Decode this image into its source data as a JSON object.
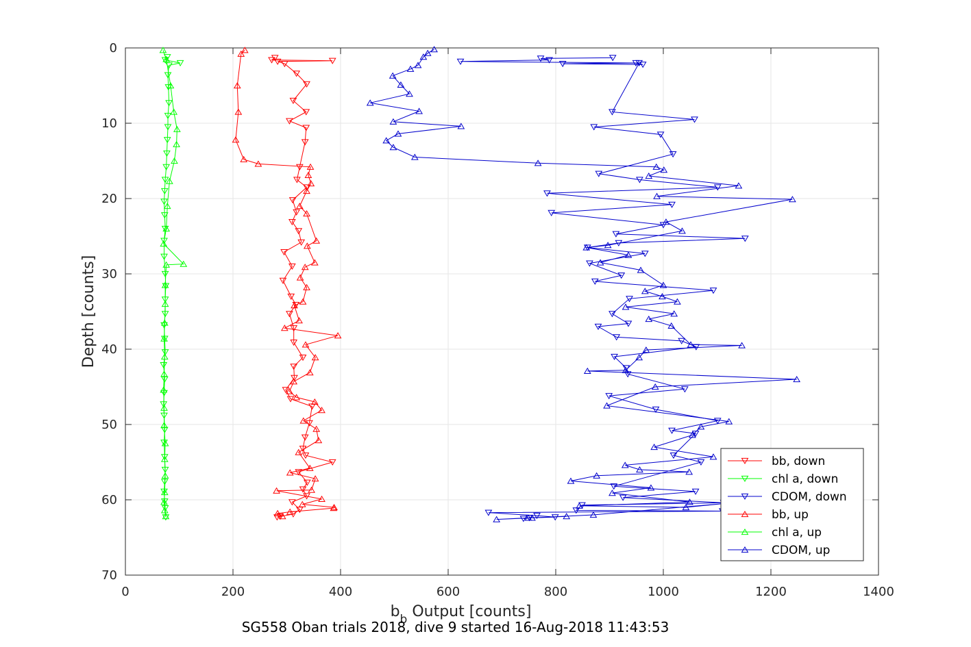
{
  "chart_data": {
    "type": "line",
    "title": "SG558 Oban trials 2018, dive 9 started 16-Aug-2018 11:43:53",
    "xlabel": {
      "main": "b",
      "sub": "b",
      "rest": " Output [counts]"
    },
    "ylabel": "Depth [counts]",
    "xlim": [
      0,
      1400
    ],
    "ylim": [
      0,
      70
    ],
    "y_reversed": true,
    "xticks": [
      0,
      200,
      400,
      600,
      800,
      1000,
      1200,
      1400
    ],
    "yticks": [
      0,
      10,
      20,
      30,
      40,
      50,
      60,
      70
    ],
    "grid": true,
    "legend_position": "bottom-right",
    "series": [
      {
        "name": "bb, down",
        "color": "#ff0000",
        "marker": "triangle-down",
        "points": [
          [
            278,
            1.3
          ],
          [
            272,
            1.6
          ],
          [
            385,
            1.7
          ],
          [
            283,
            1.8
          ],
          [
            296,
            2.1
          ],
          [
            318,
            3.4
          ],
          [
            337,
            4.8
          ],
          [
            312,
            7.0
          ],
          [
            336,
            8.5
          ],
          [
            305,
            9.7
          ],
          [
            336,
            10.6
          ],
          [
            334,
            12.5
          ],
          [
            324,
            15.8
          ],
          [
            319,
            17.5
          ],
          [
            337,
            18.5
          ],
          [
            311,
            20.2
          ],
          [
            318,
            21.8
          ],
          [
            310,
            23.1
          ],
          [
            322,
            24.3
          ],
          [
            327,
            25.8
          ],
          [
            295,
            27.1
          ],
          [
            310,
            29.0
          ],
          [
            293,
            30.9
          ],
          [
            308,
            33.0
          ],
          [
            317,
            34.1
          ],
          [
            305,
            35.3
          ],
          [
            313,
            37.2
          ],
          [
            313,
            39.1
          ],
          [
            330,
            41.1
          ],
          [
            313,
            42.3
          ],
          [
            314,
            43.8
          ],
          [
            298,
            45.4
          ],
          [
            307,
            46.6
          ],
          [
            347,
            47.6
          ],
          [
            342,
            49.8
          ],
          [
            334,
            51.7
          ],
          [
            330,
            53.2
          ],
          [
            335,
            54.1
          ],
          [
            385,
            55.0
          ],
          [
            322,
            56.3
          ],
          [
            338,
            57.7
          ],
          [
            330,
            58.6
          ],
          [
            337,
            59.5
          ],
          [
            310,
            60.3
          ],
          [
            324,
            61.3
          ],
          [
            312,
            61.9
          ],
          [
            288,
            62.2
          ],
          [
            282,
            62.3
          ]
        ]
      },
      {
        "name": "chl a, down",
        "color": "#00ff00",
        "marker": "triangle-down",
        "points": [
          [
            78,
            1.2
          ],
          [
            74,
            1.6
          ],
          [
            102,
            2.0
          ],
          [
            81,
            2.3
          ],
          [
            79,
            3.6
          ],
          [
            80,
            5.2
          ],
          [
            81,
            7.3
          ],
          [
            79,
            9.0
          ],
          [
            79,
            10.5
          ],
          [
            78,
            12.2
          ],
          [
            77,
            14.0
          ],
          [
            76,
            15.8
          ],
          [
            74,
            17.5
          ],
          [
            73,
            19.0
          ],
          [
            72,
            20.4
          ],
          [
            73,
            22.2
          ],
          [
            74,
            24.0
          ],
          [
            72,
            25.6
          ],
          [
            72,
            27.7
          ],
          [
            74,
            30.0
          ],
          [
            75,
            31.6
          ],
          [
            74,
            33.4
          ],
          [
            74,
            35.3
          ],
          [
            72,
            36.8
          ],
          [
            73,
            38.6
          ],
          [
            74,
            40.4
          ],
          [
            71,
            42.1
          ],
          [
            73,
            44.0
          ],
          [
            72,
            45.8
          ],
          [
            71,
            47.3
          ],
          [
            72,
            48.8
          ],
          [
            73,
            50.7
          ],
          [
            72,
            52.4
          ],
          [
            73,
            54.3
          ],
          [
            74,
            56.0
          ],
          [
            73,
            57.6
          ],
          [
            72,
            58.9
          ],
          [
            73,
            60.2
          ],
          [
            74,
            61.1
          ],
          [
            75,
            62.3
          ]
        ]
      },
      {
        "name": "CDOM, down",
        "color": "#0000cc",
        "marker": "triangle-down",
        "points": [
          [
            906,
            1.3
          ],
          [
            772,
            1.4
          ],
          [
            788,
            1.6
          ],
          [
            623,
            1.8
          ],
          [
            949,
            2.0
          ],
          [
            962,
            2.2
          ],
          [
            813,
            2.1
          ],
          [
            955,
            2.0
          ],
          [
            905,
            8.5
          ],
          [
            1058,
            9.5
          ],
          [
            871,
            10.5
          ],
          [
            995,
            11.5
          ],
          [
            1018,
            14.1
          ],
          [
            880,
            16.7
          ],
          [
            956,
            17.5
          ],
          [
            1101,
            18.5
          ],
          [
            784,
            19.3
          ],
          [
            1016,
            20.8
          ],
          [
            792,
            21.9
          ],
          [
            1000,
            23.5
          ],
          [
            912,
            24.7
          ],
          [
            1152,
            25.3
          ],
          [
            917,
            25.9
          ],
          [
            859,
            26.5
          ],
          [
            966,
            27.3
          ],
          [
            863,
            28.6
          ],
          [
            922,
            30.2
          ],
          [
            873,
            31.0
          ],
          [
            1093,
            32.2
          ],
          [
            937,
            33.3
          ],
          [
            905,
            35.3
          ],
          [
            935,
            36.6
          ],
          [
            879,
            37.0
          ],
          [
            913,
            38.4
          ],
          [
            1034,
            38.9
          ],
          [
            1061,
            39.7
          ],
          [
            909,
            41.0
          ],
          [
            931,
            42.5
          ],
          [
            934,
            43.3
          ],
          [
            1040,
            45.3
          ],
          [
            899,
            46.2
          ],
          [
            986,
            48.0
          ],
          [
            1101,
            49.5
          ],
          [
            1016,
            50.8
          ],
          [
            1060,
            51.2
          ],
          [
            1019,
            54.1
          ],
          [
            1070,
            55.0
          ],
          [
            908,
            58.2
          ],
          [
            1060,
            58.9
          ],
          [
            925,
            59.7
          ],
          [
            1112,
            60.4
          ],
          [
            849,
            60.7
          ],
          [
            838,
            61.4
          ],
          [
            1110,
            61.5
          ],
          [
            675,
            61.7
          ],
          [
            765,
            62.1
          ],
          [
            799,
            62.3
          ],
          [
            751,
            62.4
          ],
          [
            740,
            62.5
          ]
        ]
      },
      {
        "name": "bb, up",
        "color": "#ff0000",
        "marker": "triangle-up",
        "points": [
          [
            222,
            0.3
          ],
          [
            215,
            0.8
          ],
          [
            208,
            5.0
          ],
          [
            210,
            8.5
          ],
          [
            205,
            12.2
          ],
          [
            220,
            14.8
          ],
          [
            247,
            15.4
          ],
          [
            344,
            15.8
          ],
          [
            340,
            16.9
          ],
          [
            345,
            18.0
          ],
          [
            337,
            19.0
          ],
          [
            324,
            21.0
          ],
          [
            337,
            22.0
          ],
          [
            355,
            25.6
          ],
          [
            338,
            26.3
          ],
          [
            352,
            28.5
          ],
          [
            334,
            29.1
          ],
          [
            325,
            30.5
          ],
          [
            337,
            31.8
          ],
          [
            330,
            33.7
          ],
          [
            314,
            34.2
          ],
          [
            323,
            36.2
          ],
          [
            296,
            37.2
          ],
          [
            395,
            38.2
          ],
          [
            335,
            39.4
          ],
          [
            353,
            41.1
          ],
          [
            343,
            43.1
          ],
          [
            313,
            44.3
          ],
          [
            305,
            45.6
          ],
          [
            318,
            46.4
          ],
          [
            352,
            47.0
          ],
          [
            365,
            48.1
          ],
          [
            331,
            49.5
          ],
          [
            355,
            50.6
          ],
          [
            359,
            52.1
          ],
          [
            322,
            53.7
          ],
          [
            343,
            55.8
          ],
          [
            306,
            56.4
          ],
          [
            353,
            57.2
          ],
          [
            346,
            58.7
          ],
          [
            281,
            58.8
          ],
          [
            365,
            59.9
          ],
          [
            329,
            60.6
          ],
          [
            388,
            61.0
          ],
          [
            387,
            61.1
          ],
          [
            306,
            61.6
          ],
          [
            283,
            61.8
          ],
          [
            292,
            62.2
          ]
        ]
      },
      {
        "name": "chl a, up",
        "color": "#00ff00",
        "marker": "triangle-up",
        "points": [
          [
            70,
            0.3
          ],
          [
            76,
            1.5
          ],
          [
            84,
            5.0
          ],
          [
            90,
            8.5
          ],
          [
            96,
            10.8
          ],
          [
            95,
            12.8
          ],
          [
            91,
            15.0
          ],
          [
            82,
            17.7
          ],
          [
            78,
            21.0
          ],
          [
            76,
            24.0
          ],
          [
            71,
            26.0
          ],
          [
            108,
            28.7
          ],
          [
            76,
            28.8
          ],
          [
            74,
            31.5
          ],
          [
            74,
            34.0
          ],
          [
            73,
            36.5
          ],
          [
            72,
            38.6
          ],
          [
            73,
            41.0
          ],
          [
            72,
            43.3
          ],
          [
            71,
            45.4
          ],
          [
            72,
            47.8
          ],
          [
            72,
            50.1
          ],
          [
            74,
            52.5
          ],
          [
            73,
            54.6
          ],
          [
            74,
            56.8
          ],
          [
            73,
            59.0
          ],
          [
            72,
            60.3
          ],
          [
            73,
            61.4
          ],
          [
            75,
            62.2
          ]
        ]
      },
      {
        "name": "CDOM, up",
        "color": "#0000cc",
        "marker": "triangle-up",
        "points": [
          [
            574,
            0.2
          ],
          [
            562,
            0.7
          ],
          [
            554,
            1.2
          ],
          [
            544,
            2.3
          ],
          [
            530,
            2.8
          ],
          [
            497,
            3.7
          ],
          [
            512,
            4.9
          ],
          [
            528,
            6.1
          ],
          [
            455,
            7.3
          ],
          [
            546,
            8.4
          ],
          [
            498,
            9.8
          ],
          [
            624,
            10.4
          ],
          [
            507,
            11.4
          ],
          [
            485,
            12.3
          ],
          [
            498,
            13.2
          ],
          [
            538,
            14.5
          ],
          [
            767,
            15.3
          ],
          [
            987,
            15.8
          ],
          [
            1001,
            16.2
          ],
          [
            973,
            17.0
          ],
          [
            1140,
            18.3
          ],
          [
            988,
            19.7
          ],
          [
            1240,
            20.1
          ],
          [
            1005,
            23.1
          ],
          [
            1035,
            24.3
          ],
          [
            897,
            26.2
          ],
          [
            857,
            26.5
          ],
          [
            935,
            27.5
          ],
          [
            883,
            28.5
          ],
          [
            958,
            29.5
          ],
          [
            1000,
            31.5
          ],
          [
            966,
            32.3
          ],
          [
            998,
            33.0
          ],
          [
            1026,
            33.7
          ],
          [
            930,
            34.4
          ],
          [
            1020,
            35.3
          ],
          [
            973,
            36.0
          ],
          [
            1015,
            36.9
          ],
          [
            1051,
            39.4
          ],
          [
            1146,
            39.5
          ],
          [
            968,
            40.1
          ],
          [
            955,
            41.1
          ],
          [
            930,
            42.8
          ],
          [
            859,
            42.9
          ],
          [
            1248,
            44.0
          ],
          [
            985,
            45.0
          ],
          [
            895,
            47.5
          ],
          [
            1122,
            49.6
          ],
          [
            1070,
            50.3
          ],
          [
            1054,
            51.4
          ],
          [
            983,
            53.0
          ],
          [
            1093,
            54.3
          ],
          [
            929,
            55.4
          ],
          [
            956,
            56.0
          ],
          [
            1048,
            56.3
          ],
          [
            876,
            56.8
          ],
          [
            828,
            57.5
          ],
          [
            977,
            58.4
          ],
          [
            905,
            59.1
          ],
          [
            1049,
            60.3
          ],
          [
            844,
            60.8
          ],
          [
            1042,
            61.0
          ],
          [
            1113,
            60.5
          ],
          [
            870,
            62.0
          ],
          [
            756,
            62.4
          ],
          [
            690,
            62.6
          ],
          [
            749,
            62.4
          ],
          [
            820,
            62.2
          ]
        ]
      }
    ]
  }
}
